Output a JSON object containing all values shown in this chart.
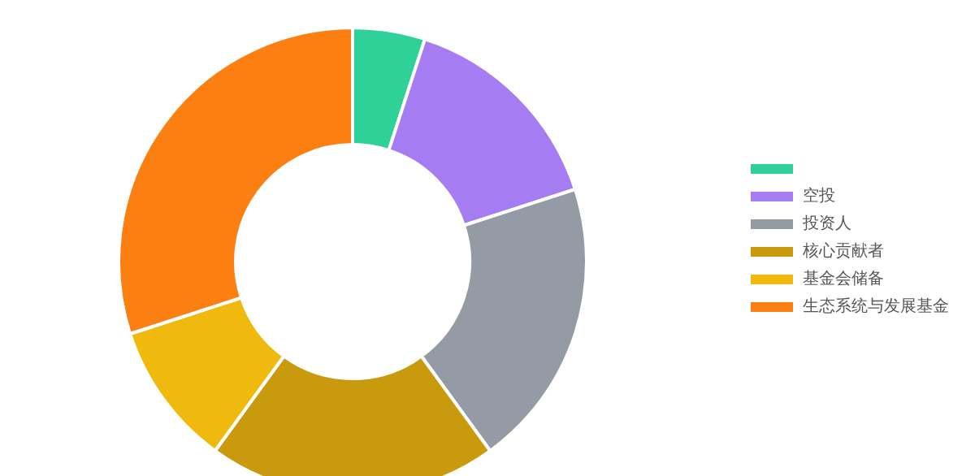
{
  "chart_data": {
    "type": "donut",
    "categories": [
      null,
      "空投",
      "投资人",
      "核心贡献者",
      "基金会储备",
      "生态系统与发展基金"
    ],
    "values": [
      5,
      15,
      20,
      20,
      10,
      30
    ],
    "colors": [
      "#2ed197",
      "#a57cf2",
      "#949ba4",
      "#c99a0e",
      "#efb90d",
      "#fc7f11"
    ],
    "legend": "right"
  }
}
